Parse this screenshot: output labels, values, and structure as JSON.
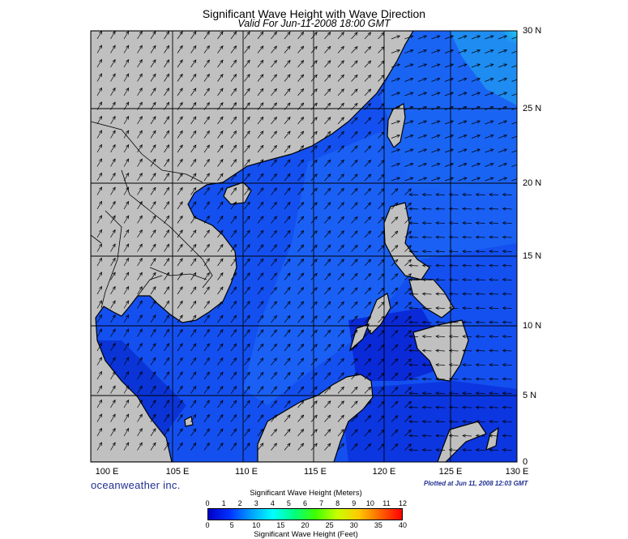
{
  "header": {
    "title": "Significant Wave Height with Wave Direction",
    "subtitle": "Valid For Jun-11-2008 18:00 GMT"
  },
  "map": {
    "lon_labels": [
      "100 E",
      "105 E",
      "110 E",
      "115 E",
      "120 E",
      "125 E",
      "130 E"
    ],
    "lat_labels": [
      "30 N",
      "25 N",
      "20 N",
      "15 N",
      "10 N",
      "5 N",
      "0"
    ],
    "land_color": "#c0c0c0",
    "grid_color": "#000000",
    "arrow_direction": "flowing from the southwest toward the northeast over the South China Sea; westward east of the Philippines"
  },
  "footer": {
    "brand": "oceanweather inc.",
    "plotted": "Plotted at Jun 11, 2008 12:03 GMT"
  },
  "colorbar": {
    "meters_title": "Significant Wave Height (Meters)",
    "feet_title": "Significant Wave Height (Feet)",
    "meters_ticks": [
      "0",
      "1",
      "2",
      "3",
      "4",
      "5",
      "6",
      "7",
      "8",
      "9",
      "10",
      "11",
      "12"
    ],
    "feet_ticks": [
      "0",
      "5",
      "10",
      "15",
      "20",
      "25",
      "30",
      "35",
      "40"
    ],
    "colors": [
      "#0000c8",
      "#0032ff",
      "#00a0ff",
      "#00ffff",
      "#00ff80",
      "#40ff00",
      "#c8ff00",
      "#ffc800",
      "#ff6400",
      "#ff0000"
    ]
  }
}
